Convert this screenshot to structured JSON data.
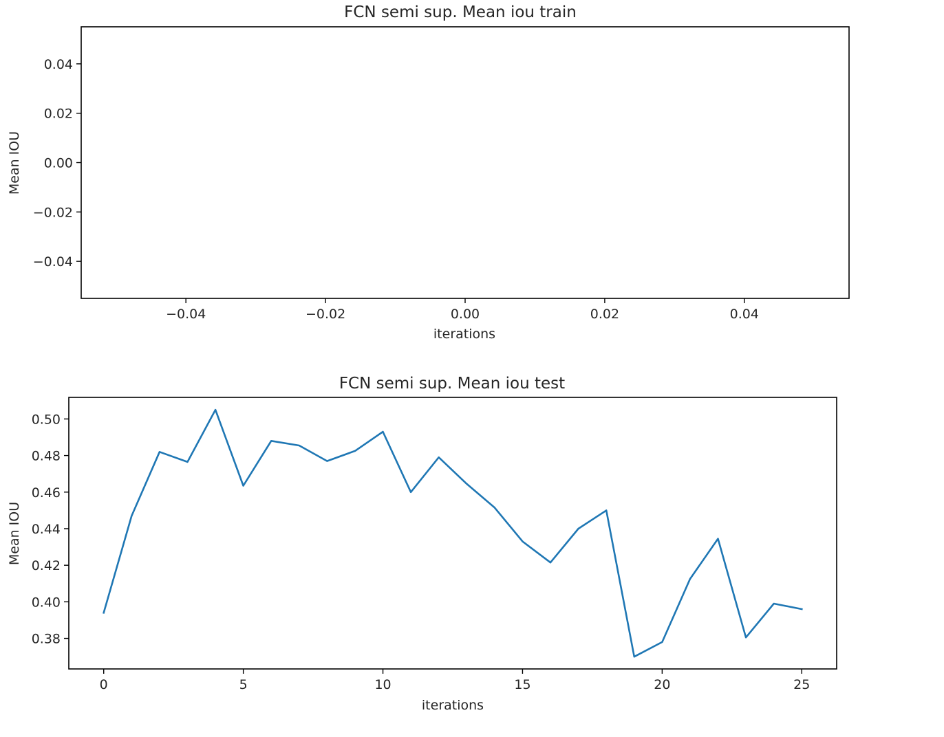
{
  "chart_data": [
    {
      "type": "line",
      "title": "FCN semi sup. Mean iou train",
      "xlabel": "iterations",
      "ylabel": "Mean IOU",
      "xlim": [
        -0.055,
        0.055
      ],
      "ylim": [
        -0.055,
        0.055
      ],
      "xticks": [
        -0.04,
        -0.02,
        0.0,
        0.02,
        0.04
      ],
      "xtick_labels": [
        "−0.04",
        "−0.02",
        "0.00",
        "0.02",
        "0.04"
      ],
      "yticks": [
        0.04,
        0.02,
        0.0,
        -0.02,
        -0.04
      ],
      "ytick_labels": [
        "0.04",
        "0.02",
        "0.00",
        "−0.02",
        "−0.04"
      ],
      "grid": false,
      "series": [
        {
          "x": [],
          "values": [],
          "color": "#1f77b4"
        }
      ]
    },
    {
      "type": "line",
      "title": "FCN semi sup. Mean iou test",
      "xlabel": "iterations",
      "ylabel": "Mean IOU",
      "xlim": [
        -1.25,
        26.25
      ],
      "ylim": [
        0.3633,
        0.5118
      ],
      "xticks": [
        0,
        5,
        10,
        15,
        20,
        25
      ],
      "xtick_labels": [
        "0",
        "5",
        "10",
        "15",
        "20",
        "25"
      ],
      "yticks": [
        0.5,
        0.48,
        0.46,
        0.44,
        0.42,
        0.4,
        0.38
      ],
      "ytick_labels": [
        "0.50",
        "0.48",
        "0.46",
        "0.44",
        "0.42",
        "0.40",
        "0.38"
      ],
      "grid": false,
      "series": [
        {
          "x": [
            0,
            1,
            2,
            3,
            4,
            5,
            6,
            7,
            8,
            9,
            10,
            11,
            12,
            13,
            14,
            15,
            16,
            17,
            18,
            19,
            20,
            21,
            22,
            23,
            24,
            25
          ],
          "values": [
            0.394,
            0.447,
            0.482,
            0.4765,
            0.505,
            0.4635,
            0.488,
            0.4855,
            0.477,
            0.4825,
            0.493,
            0.46,
            0.479,
            0.4645,
            0.4515,
            0.433,
            0.4215,
            0.44,
            0.45,
            0.37,
            0.378,
            0.4125,
            0.4345,
            0.3805,
            0.399,
            0.396
          ],
          "color": "#1f77b4"
        }
      ]
    }
  ]
}
